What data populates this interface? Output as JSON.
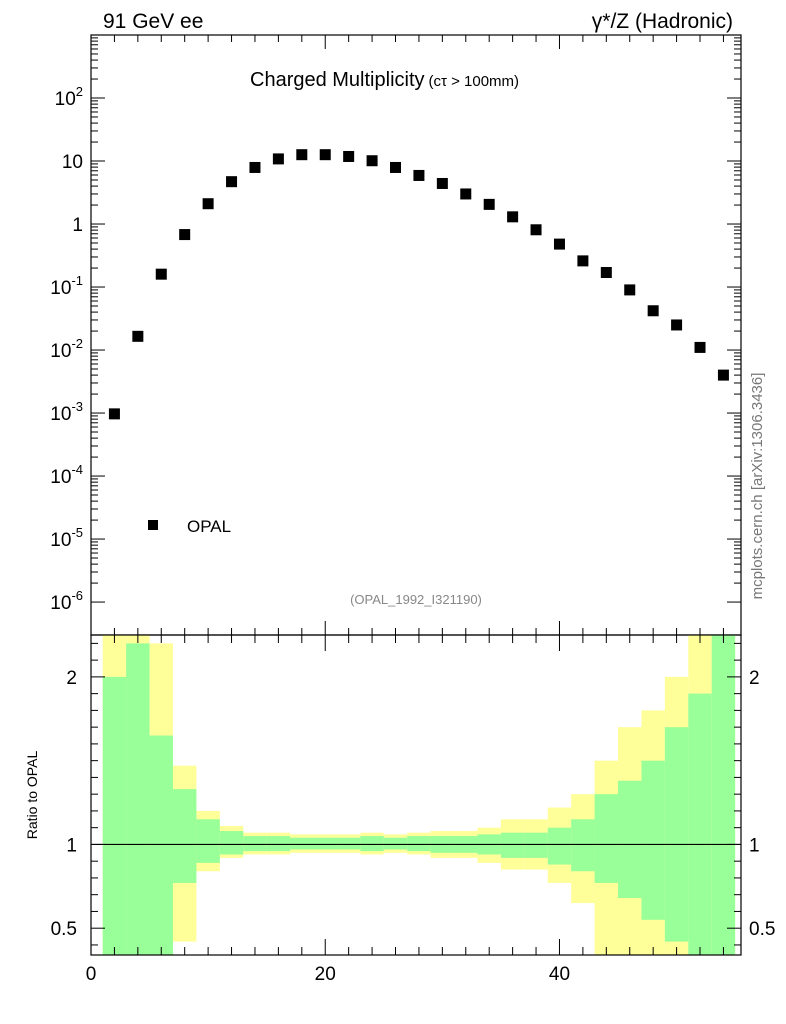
{
  "header": {
    "left": "91 GeV ee",
    "right": "γ*/Z (Hadronic)"
  },
  "side_label": "mcplots.cern.ch [arXiv:1306.3436]",
  "colors": {
    "data_marker": "#000000",
    "band_inner": "#99ff99",
    "band_outer": "#ffff99",
    "ref_line": "#000000"
  },
  "chart_data": [
    {
      "type": "scatter",
      "title": "Charged Multiplicity",
      "title_suffix": "(cτ > 100mm)",
      "reference_label": "(OPAL_1992_I321190)",
      "yscale": "log",
      "ylim": [
        3e-07,
        1000
      ],
      "xlim": [
        0,
        55.5
      ],
      "ytick_labels": [
        "10^-6",
        "10^-5",
        "10^-4",
        "10^-3",
        "10^-2",
        "10^-1",
        "1",
        "10",
        "10^2"
      ],
      "legend": [
        {
          "label": "OPAL",
          "marker": "square"
        }
      ],
      "legend_position": "lower-left",
      "series": [
        {
          "name": "OPAL",
          "x": [
            2,
            4,
            6,
            8,
            10,
            12,
            14,
            16,
            18,
            20,
            22,
            24,
            26,
            28,
            30,
            32,
            34,
            36,
            38,
            40,
            42,
            44,
            46,
            48,
            50,
            52,
            54
          ],
          "y": [
            0.00097,
            0.0165,
            0.16,
            0.68,
            2.1,
            4.7,
            7.9,
            10.8,
            12.6,
            12.6,
            11.8,
            10.1,
            7.9,
            5.9,
            4.4,
            3.0,
            2.05,
            1.3,
            0.81,
            0.48,
            0.26,
            0.17,
            0.09,
            0.042,
            0.025,
            0.011,
            0.004
          ]
        }
      ]
    },
    {
      "type": "area",
      "ylabel": "Ratio to OPAL",
      "xlabel": "",
      "ylim": [
        0.34,
        2.25
      ],
      "xlim": [
        0,
        55.5
      ],
      "xtick_labels": [
        "0",
        "20",
        "40"
      ],
      "ytick_labels": [
        "0.5",
        "1",
        "2"
      ],
      "reference_value": 1,
      "bins": [
        {
          "lo": 1,
          "hi": 3,
          "inner": [
            0.3,
            2.0
          ],
          "outer": [
            0.3,
            2.5
          ]
        },
        {
          "lo": 3,
          "hi": 5,
          "inner": [
            0.3,
            2.2
          ],
          "outer": [
            0.3,
            2.5
          ]
        },
        {
          "lo": 5,
          "hi": 7,
          "inner": [
            0.3,
            1.65
          ],
          "outer": [
            0.3,
            2.2
          ]
        },
        {
          "lo": 7,
          "hi": 9,
          "inner": [
            0.77,
            1.33
          ],
          "outer": [
            0.42,
            1.47
          ]
        },
        {
          "lo": 9,
          "hi": 11,
          "inner": [
            0.89,
            1.15
          ],
          "outer": [
            0.84,
            1.2
          ]
        },
        {
          "lo": 11,
          "hi": 13,
          "inner": [
            0.94,
            1.08
          ],
          "outer": [
            0.92,
            1.11
          ]
        },
        {
          "lo": 13,
          "hi": 15,
          "inner": [
            0.96,
            1.05
          ],
          "outer": [
            0.94,
            1.07
          ]
        },
        {
          "lo": 15,
          "hi": 17,
          "inner": [
            0.96,
            1.05
          ],
          "outer": [
            0.94,
            1.07
          ]
        },
        {
          "lo": 17,
          "hi": 19,
          "inner": [
            0.97,
            1.04
          ],
          "outer": [
            0.95,
            1.06
          ]
        },
        {
          "lo": 19,
          "hi": 21,
          "inner": [
            0.97,
            1.04
          ],
          "outer": [
            0.95,
            1.06
          ]
        },
        {
          "lo": 21,
          "hi": 23,
          "inner": [
            0.97,
            1.04
          ],
          "outer": [
            0.95,
            1.06
          ]
        },
        {
          "lo": 23,
          "hi": 25,
          "inner": [
            0.96,
            1.05
          ],
          "outer": [
            0.94,
            1.07
          ]
        },
        {
          "lo": 25,
          "hi": 27,
          "inner": [
            0.97,
            1.04
          ],
          "outer": [
            0.95,
            1.06
          ]
        },
        {
          "lo": 27,
          "hi": 29,
          "inner": [
            0.96,
            1.05
          ],
          "outer": [
            0.94,
            1.07
          ]
        },
        {
          "lo": 29,
          "hi": 31,
          "inner": [
            0.95,
            1.05
          ],
          "outer": [
            0.92,
            1.08
          ]
        },
        {
          "lo": 31,
          "hi": 33,
          "inner": [
            0.95,
            1.05
          ],
          "outer": [
            0.92,
            1.08
          ]
        },
        {
          "lo": 33,
          "hi": 35,
          "inner": [
            0.94,
            1.06
          ],
          "outer": [
            0.89,
            1.1
          ]
        },
        {
          "lo": 35,
          "hi": 37,
          "inner": [
            0.92,
            1.07
          ],
          "outer": [
            0.85,
            1.15
          ]
        },
        {
          "lo": 37,
          "hi": 39,
          "inner": [
            0.92,
            1.07
          ],
          "outer": [
            0.85,
            1.15
          ]
        },
        {
          "lo": 39,
          "hi": 41,
          "inner": [
            0.88,
            1.1
          ],
          "outer": [
            0.77,
            1.22
          ]
        },
        {
          "lo": 41,
          "hi": 43,
          "inner": [
            0.84,
            1.15
          ],
          "outer": [
            0.65,
            1.3
          ]
        },
        {
          "lo": 43,
          "hi": 45,
          "inner": [
            0.77,
            1.3
          ],
          "outer": [
            0.3,
            1.5
          ]
        },
        {
          "lo": 45,
          "hi": 47,
          "inner": [
            0.68,
            1.38
          ],
          "outer": [
            0.3,
            1.7
          ]
        },
        {
          "lo": 47,
          "hi": 49,
          "inner": [
            0.55,
            1.5
          ],
          "outer": [
            0.3,
            1.8
          ]
        },
        {
          "lo": 49,
          "hi": 51,
          "inner": [
            0.42,
            1.7
          ],
          "outer": [
            0.3,
            2.0
          ]
        },
        {
          "lo": 51,
          "hi": 53,
          "inner": [
            0.3,
            1.9
          ],
          "outer": [
            0.3,
            2.3
          ]
        },
        {
          "lo": 53,
          "hi": 55,
          "inner": [
            0.3,
            2.3
          ],
          "outer": [
            0.3,
            2.5
          ]
        }
      ]
    }
  ]
}
